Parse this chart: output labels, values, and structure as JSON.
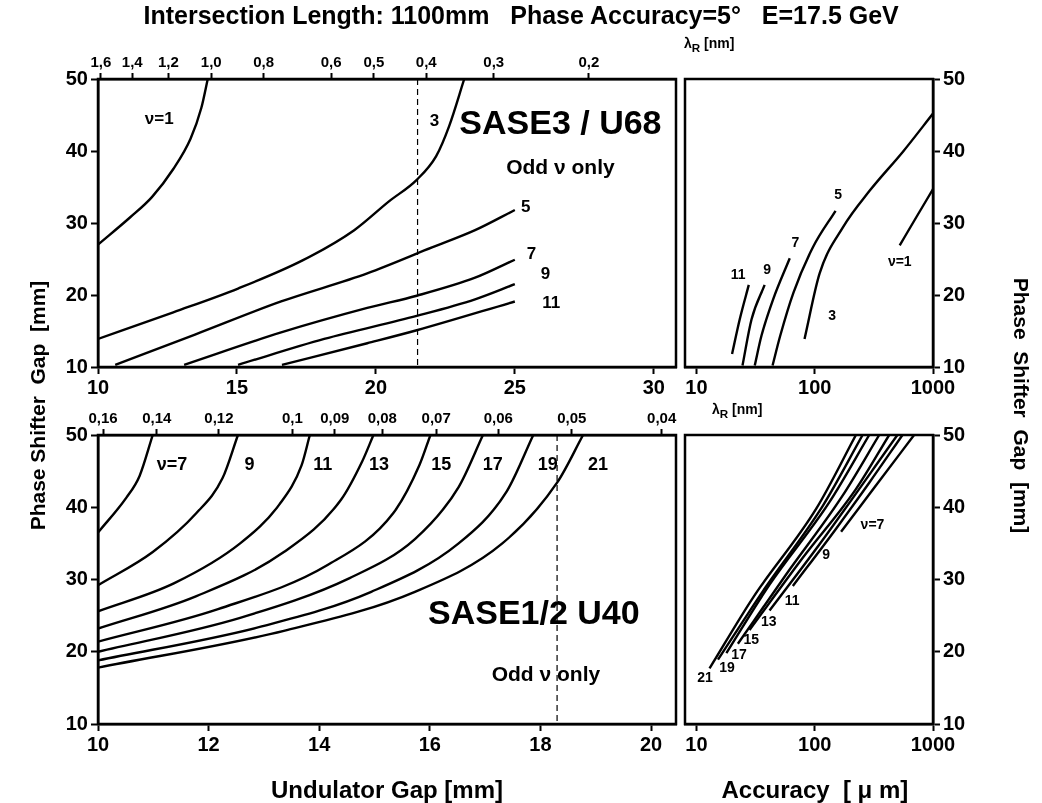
{
  "chart_data": [
    {
      "type": "line",
      "title": "Intersection Length: 1100mm   Phase Accuracy=5°   E=17.5 GeV",
      "ylabel": "Phase Shifter  Gap  [mm]",
      "xlim": [
        10,
        30.8
      ],
      "xticks": [
        10,
        15,
        20,
        25,
        30
      ],
      "log": "x2",
      "x2lim": [
        1.62,
        0.138
      ],
      "x2label": "λ$_{R}$ [nm]",
      "x2ticks": [
        {
          "value": 1.6,
          "label": "1,6"
        },
        {
          "value": 1.4,
          "label": "1,4"
        },
        {
          "value": 1.2,
          "label": "1,2"
        },
        {
          "value": 1.0,
          "label": "1,0"
        },
        {
          "value": 0.8,
          "label": "0,8"
        },
        {
          "value": 0.6,
          "label": "0,6"
        },
        {
          "value": 0.5,
          "label": "0,5"
        },
        {
          "value": 0.4,
          "label": "0,4"
        },
        {
          "value": 0.3,
          "label": "0,3"
        },
        {
          "value": 0.2,
          "label": "0,2"
        }
      ],
      "ylim": [
        10,
        50
      ],
      "yticks": [
        10,
        20,
        30,
        40,
        50
      ],
      "grid": false,
      "legend": false,
      "marker": "none",
      "line_style": "solid",
      "ref_lines": [
        {
          "axis": "x",
          "value": 21.5,
          "line_style": "dashed",
          "color": "#000000"
        }
      ],
      "annotations": [
        "SASE3 / U68",
        "Odd ν only"
      ],
      "series": [
        {
          "name": "ν=1",
          "color": "#000000",
          "x": [
            10,
            11.16,
            11.94,
            12.71,
            13.33,
            13.72,
            13.95
          ],
          "values": [
            27.0,
            30.8,
            33.6,
            37.5,
            41.7,
            46.0,
            50
          ]
        },
        {
          "name": "3",
          "color": "#000000",
          "x": [
            10,
            12.71,
            15.04,
            17.36,
            19.22,
            20.47,
            21.47,
            22.17,
            22.64,
            23.18
          ],
          "values": [
            13.9,
            17.6,
            20.9,
            24.8,
            29.0,
            33.0,
            36.0,
            39.3,
            43.5,
            50
          ]
        },
        {
          "name": "5",
          "color": "#000000",
          "x": [
            10.62,
            13.49,
            16.59,
            19.69,
            22.02,
            23.57,
            25.0
          ],
          "values": [
            10.3,
            14.5,
            19.1,
            23.0,
            26.6,
            29.0,
            31.8
          ]
        },
        {
          "name": "7",
          "color": "#000000",
          "x": [
            13.1,
            16.59,
            19.69,
            21.47,
            23.57,
            25.0
          ],
          "values": [
            10.3,
            14.8,
            18.2,
            19.9,
            22.4,
            24.9
          ]
        },
        {
          "name": "9",
          "color": "#000000",
          "x": [
            15.04,
            18.14,
            21.47,
            23.57,
            25.0
          ],
          "values": [
            10.3,
            13.9,
            17.1,
            19.4,
            21.5
          ]
        },
        {
          "name": "11",
          "color": "#000000",
          "x": [
            16.62,
            19.69,
            21.47,
            25.0
          ],
          "values": [
            10.3,
            13.3,
            15.1,
            19.1
          ]
        }
      ]
    },
    {
      "type": "line",
      "ylabel": "Phase  Shifter  Gap  [mm]",
      "xlim": [
        8,
        1000
      ],
      "xticks": [
        10,
        100,
        1000
      ],
      "log": "x",
      "ylim": [
        10,
        50
      ],
      "yticks": [
        10,
        20,
        30,
        40,
        50
      ],
      "grid": false,
      "legend": false,
      "marker": "none",
      "line_style": "solid",
      "series": [
        {
          "name": "ν=1",
          "color": "#000000",
          "x": [
            523,
            722,
            1000
          ],
          "values": [
            26.9,
            30.8,
            34.7
          ]
        },
        {
          "name": "3",
          "color": "#000000",
          "x": [
            82,
            110,
            173,
            292,
            557,
            1000
          ],
          "values": [
            13.9,
            23.0,
            29.4,
            34.5,
            39.9,
            45.2
          ]
        },
        {
          "name": "5",
          "color": "#000000",
          "x": [
            44,
            51,
            66,
            97,
            150
          ],
          "values": [
            10.2,
            14.3,
            20.3,
            26.7,
            31.7
          ]
        },
        {
          "name": "7",
          "color": "#000000",
          "x": [
            31.1,
            35.4,
            44.5,
            61.5
          ],
          "values": [
            10.2,
            14.3,
            19.4,
            25.1
          ]
        },
        {
          "name": "9",
          "color": "#000000",
          "x": [
            24.5,
            29.2,
            37.7
          ],
          "values": [
            10.2,
            16.6,
            21.4
          ]
        },
        {
          "name": "11",
          "color": "#000000",
          "x": [
            20.0,
            23.2,
            27.7
          ],
          "values": [
            11.8,
            16.6,
            21.4
          ]
        }
      ]
    },
    {
      "type": "line",
      "xlabel": "Undulator Gap [mm]",
      "xlim": [
        10,
        20.45
      ],
      "xticks": [
        10,
        12,
        14,
        16,
        18,
        20
      ],
      "log": "x2",
      "x2lim": [
        0.162,
        0.0386
      ],
      "x2label": "λ$_{R}$ [nm]",
      "x2ticks": [
        {
          "value": 0.16,
          "label": "0,16"
        },
        {
          "value": 0.14,
          "label": "0,14"
        },
        {
          "value": 0.12,
          "label": "0,12"
        },
        {
          "value": 0.1,
          "label": "0,1"
        },
        {
          "value": 0.09,
          "label": "0,09"
        },
        {
          "value": 0.08,
          "label": "0,08"
        },
        {
          "value": 0.07,
          "label": "0,07"
        },
        {
          "value": 0.06,
          "label": "0,06"
        },
        {
          "value": 0.05,
          "label": "0,05"
        },
        {
          "value": 0.04,
          "label": "0,04"
        }
      ],
      "ylim": [
        10,
        50
      ],
      "yticks": [
        10,
        20,
        30,
        40,
        50
      ],
      "grid": false,
      "legend": false,
      "marker": "none",
      "line_style": "solid",
      "ref_lines": [
        {
          "axis": "x",
          "value": 18.3,
          "line_style": "dashed",
          "color": "#000000"
        }
      ],
      "annotations": [
        "SASE1/2 U40",
        "Odd ν only"
      ],
      "series": [
        {
          "name": "ν=7",
          "color": "#000000",
          "x": [
            10,
            10.51,
            10.75,
            10.99
          ],
          "values": [
            36.5,
            41.3,
            44.3,
            50
          ]
        },
        {
          "name": "9",
          "color": "#000000",
          "x": [
            10,
            10.99,
            11.78,
            12.25,
            12.53
          ],
          "values": [
            29.2,
            33.8,
            39.2,
            44.0,
            50
          ]
        },
        {
          "name": "11",
          "color": "#000000",
          "x": [
            10,
            11.38,
            12.57,
            13.28,
            13.68,
            13.83
          ],
          "values": [
            25.6,
            29.5,
            35.0,
            40.4,
            45.8,
            50
          ]
        },
        {
          "name": "13",
          "color": "#000000",
          "x": [
            10,
            11.78,
            13.36,
            14.39,
            14.78,
            14.98
          ],
          "values": [
            23.2,
            27.7,
            33.8,
            41.0,
            46.4,
            50
          ]
        },
        {
          "name": "15",
          "color": "#000000",
          "x": [
            10,
            12.17,
            14.15,
            15.34,
            15.81,
            16.01
          ],
          "values": [
            21.4,
            25.9,
            32.0,
            39.2,
            45.8,
            50
          ]
        },
        {
          "name": "17",
          "color": "#000000",
          "x": [
            10,
            12.57,
            14.55,
            15.73,
            16.52,
            16.96
          ],
          "values": [
            20.0,
            24.7,
            30.2,
            35.6,
            42.8,
            50
          ]
        },
        {
          "name": "19",
          "color": "#000000",
          "x": [
            10,
            12.96,
            14.94,
            16.52,
            17.39,
            17.87
          ],
          "values": [
            18.8,
            23.5,
            28.3,
            35.0,
            42.2,
            50
          ]
        },
        {
          "name": "21",
          "color": "#000000",
          "x": [
            10,
            13.36,
            15.73,
            17.31,
            18.3,
            18.77
          ],
          "values": [
            17.8,
            22.9,
            28.3,
            35.0,
            43.4,
            50
          ]
        }
      ]
    },
    {
      "type": "line",
      "xlabel": "Accuracy  [ μ m]",
      "xlim": [
        8,
        1000
      ],
      "xticks": [
        10,
        100,
        1000
      ],
      "log": "x",
      "ylim": [
        10,
        50
      ],
      "yticks": [
        10,
        20,
        30,
        40,
        50
      ],
      "grid": false,
      "legend": false,
      "marker": "none",
      "line_style": "solid",
      "series": [
        {
          "name": "ν=7",
          "color": "#000000",
          "x": [
            167,
            329,
            692
          ],
          "values": [
            36.6,
            43.0,
            50
          ]
        },
        {
          "name": "9",
          "color": "#000000",
          "x": [
            65.3,
            151,
            289,
            552
          ],
          "values": [
            29.1,
            37.0,
            43.4,
            50
          ]
        },
        {
          "name": "11",
          "color": "#000000",
          "x": [
            41.5,
            109,
            500
          ],
          "values": [
            25.7,
            34.8,
            50
          ]
        },
        {
          "name": "13",
          "color": "#000000",
          "x": [
            28.1,
            79.2,
            223,
            426
          ],
          "values": [
            23.0,
            33.0,
            42.5,
            50
          ]
        },
        {
          "name": "15",
          "color": "#000000",
          "x": [
            22.4,
            57.3,
            172,
            351
          ],
          "values": [
            21.1,
            30.7,
            41.6,
            50
          ]
        },
        {
          "name": "17",
          "color": "#000000",
          "x": [
            17.9,
            41.5,
            133,
            289
          ],
          "values": [
            19.8,
            29.3,
            40.7,
            50
          ]
        },
        {
          "name": "19",
          "color": "#000000",
          "x": [
            15.2,
            36.5,
            117,
            254
          ],
          "values": [
            18.9,
            28.4,
            40.2,
            50
          ]
        },
        {
          "name": "21",
          "color": "#000000",
          "x": [
            12.9,
            30.1,
            103,
            223
          ],
          "values": [
            17.7,
            27.5,
            39.8,
            50
          ]
        }
      ]
    }
  ]
}
